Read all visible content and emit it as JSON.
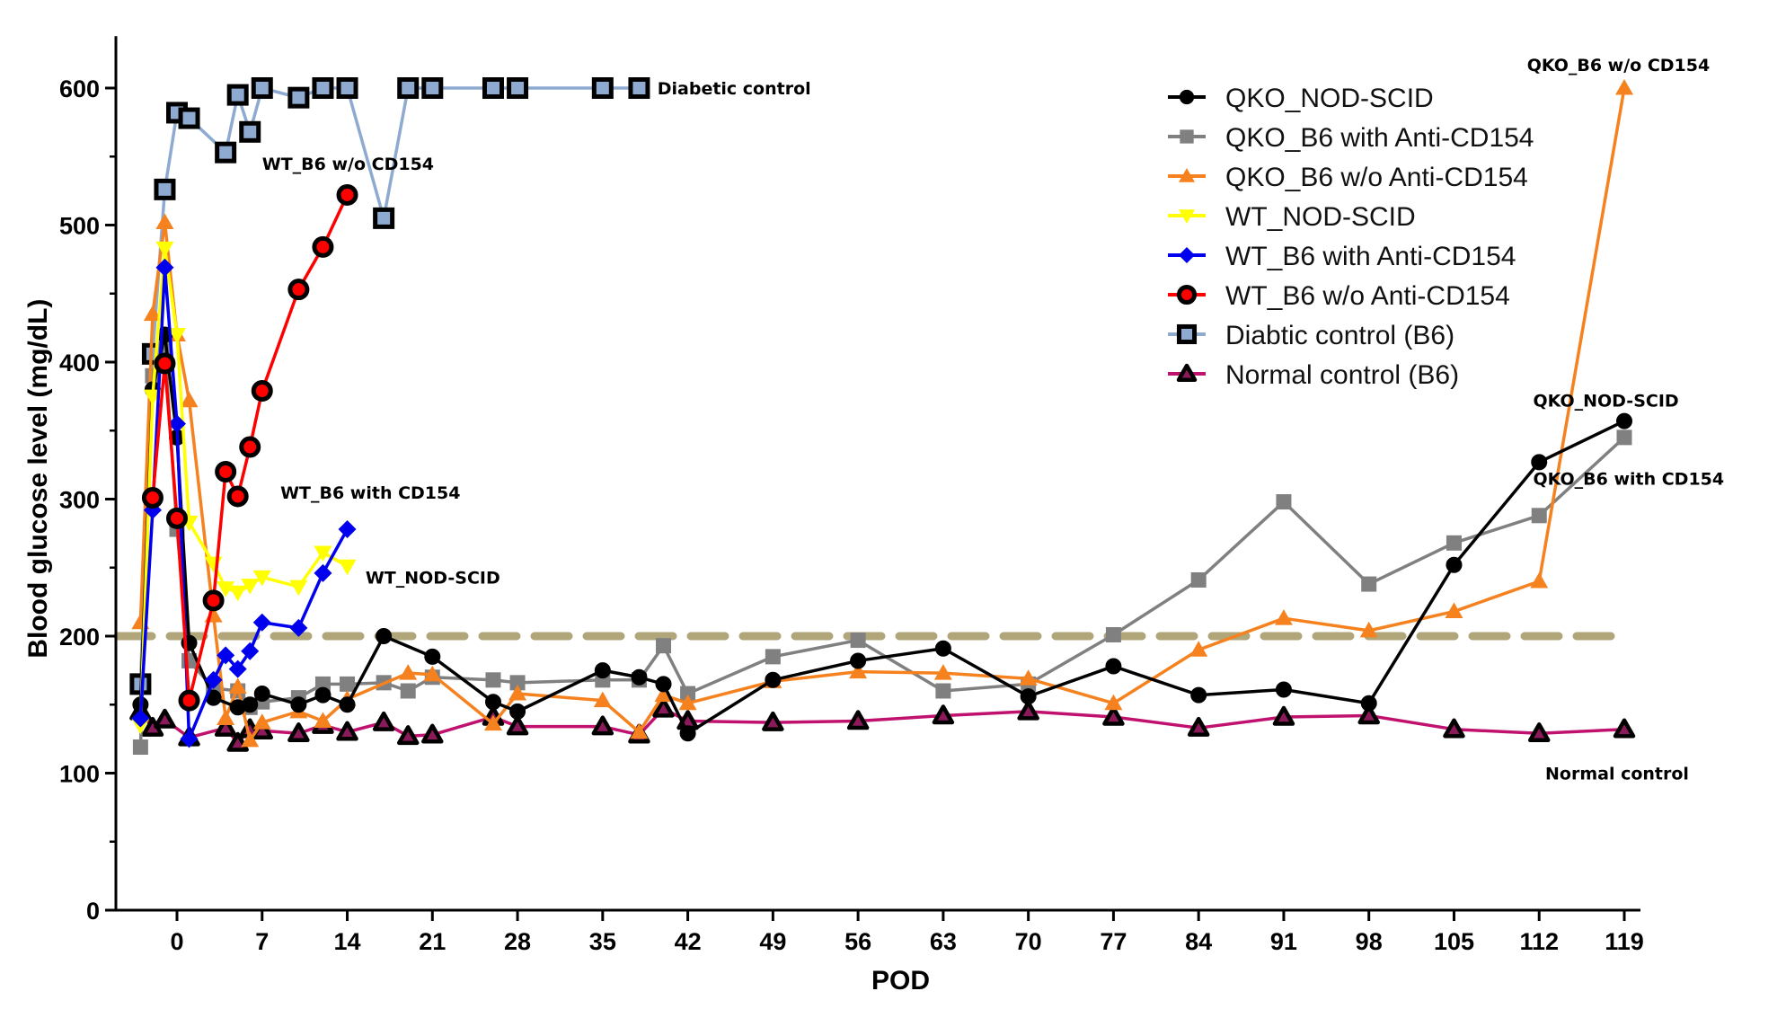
{
  "chart_data": {
    "type": "line",
    "title": "",
    "xlabel": "POD",
    "ylabel": "Blood glucose level (mg/dL)",
    "xlim": [
      -4.5,
      120
    ],
    "ylim": [
      0,
      630
    ],
    "x_ticks": [
      0,
      7,
      14,
      21,
      28,
      35,
      42,
      49,
      56,
      63,
      70,
      77,
      84,
      91,
      98,
      105,
      112,
      119
    ],
    "y_ticks": [
      0,
      100,
      200,
      300,
      400,
      500,
      600
    ],
    "y_minor_step": 50,
    "grid": false,
    "threshold": {
      "y": 200,
      "style": "dashed",
      "color": "#b0a67a"
    },
    "legend_position": "top-right",
    "series": [
      {
        "name": "QKO_NOD-SCID",
        "color": "#000000",
        "marker": "circle",
        "marker_fill": "#000000",
        "marker_stroke": "#000000",
        "points": [
          [
            -3,
            150
          ],
          [
            -2,
            380
          ],
          [
            -1,
            420
          ],
          [
            0,
            345
          ],
          [
            1,
            195
          ],
          [
            3,
            155
          ],
          [
            5,
            148
          ],
          [
            6,
            150
          ],
          [
            7,
            158
          ],
          [
            10,
            150
          ],
          [
            12,
            157
          ],
          [
            14,
            150
          ],
          [
            17,
            200
          ],
          [
            21,
            185
          ],
          [
            26,
            152
          ],
          [
            28,
            145
          ],
          [
            35,
            175
          ],
          [
            38,
            170
          ],
          [
            40,
            165
          ],
          [
            42,
            129
          ],
          [
            49,
            168
          ],
          [
            56,
            182
          ],
          [
            63,
            191
          ],
          [
            70,
            156
          ],
          [
            77,
            178
          ],
          [
            84,
            157
          ],
          [
            91,
            161
          ],
          [
            98,
            151
          ],
          [
            105,
            252
          ],
          [
            112,
            327
          ],
          [
            119,
            357
          ]
        ]
      },
      {
        "name": "QKO_B6 with Anti-CD154",
        "color": "#808080",
        "marker": "square",
        "marker_fill": "#808080",
        "marker_stroke": "#808080",
        "points": [
          [
            -3,
            119
          ],
          [
            -2,
            390
          ],
          [
            -1,
            410
          ],
          [
            0,
            278
          ],
          [
            1,
            182
          ],
          [
            3,
            162
          ],
          [
            5,
            160
          ],
          [
            6,
            148
          ],
          [
            7,
            152
          ],
          [
            10,
            155
          ],
          [
            12,
            165
          ],
          [
            14,
            165
          ],
          [
            17,
            166
          ],
          [
            19,
            160
          ],
          [
            21,
            170
          ],
          [
            26,
            168
          ],
          [
            28,
            166
          ],
          [
            35,
            168
          ],
          [
            38,
            168
          ],
          [
            40,
            193
          ],
          [
            42,
            158
          ],
          [
            49,
            185
          ],
          [
            56,
            197
          ],
          [
            63,
            160
          ],
          [
            70,
            165
          ],
          [
            77,
            201
          ],
          [
            84,
            241
          ],
          [
            91,
            298
          ],
          [
            98,
            238
          ],
          [
            105,
            268
          ],
          [
            112,
            288
          ],
          [
            119,
            345
          ]
        ]
      },
      {
        "name": "QKO_B6 w/o Anti-CD154",
        "color": "#f5821f",
        "marker": "triangle-up",
        "marker_fill": "#f5821f",
        "marker_stroke": "#f5821f",
        "points": [
          [
            -3,
            210
          ],
          [
            -2,
            435
          ],
          [
            -1,
            502
          ],
          [
            0,
            420
          ],
          [
            1,
            372
          ],
          [
            3,
            215
          ],
          [
            4,
            140
          ],
          [
            5,
            163
          ],
          [
            6,
            124
          ],
          [
            7,
            137
          ],
          [
            10,
            145
          ],
          [
            12,
            138
          ],
          [
            14,
            154
          ],
          [
            19,
            173
          ],
          [
            21,
            172
          ],
          [
            26,
            136
          ],
          [
            28,
            158
          ],
          [
            35,
            153
          ],
          [
            38,
            130
          ],
          [
            40,
            157
          ],
          [
            42,
            151
          ],
          [
            49,
            167
          ],
          [
            56,
            174
          ],
          [
            63,
            173
          ],
          [
            70,
            169
          ],
          [
            77,
            151
          ],
          [
            84,
            190
          ],
          [
            91,
            213
          ],
          [
            98,
            204
          ],
          [
            105,
            218
          ],
          [
            112,
            240
          ],
          [
            119,
            600
          ]
        ]
      },
      {
        "name": "WT_NOD-SCID",
        "color": "#ffff00",
        "marker": "triangle-down",
        "marker_fill": "#ffff00",
        "marker_stroke": "#e8e800",
        "points": [
          [
            -3,
            135
          ],
          [
            -2,
            375
          ],
          [
            -1,
            483
          ],
          [
            0,
            420
          ],
          [
            1,
            283
          ],
          [
            3,
            253
          ],
          [
            4,
            235
          ],
          [
            5,
            232
          ],
          [
            6,
            237
          ],
          [
            7,
            243
          ],
          [
            10,
            236
          ],
          [
            12,
            261
          ],
          [
            14,
            251
          ]
        ]
      },
      {
        "name": "WT_B6 with Anti-CD154",
        "color": "#0000ee",
        "marker": "diamond",
        "marker_fill": "#0000ee",
        "marker_stroke": "#0000ee",
        "points": [
          [
            -3,
            140
          ],
          [
            -2,
            292
          ],
          [
            -1,
            469
          ],
          [
            0,
            355
          ],
          [
            1,
            125
          ],
          [
            3,
            168
          ],
          [
            4,
            186
          ],
          [
            5,
            176
          ],
          [
            6,
            189
          ],
          [
            7,
            210
          ],
          [
            10,
            206
          ],
          [
            12,
            246
          ],
          [
            14,
            278
          ]
        ]
      },
      {
        "name": "WT_B6 w/o Anti-CD154",
        "color": "#ff0000",
        "marker": "circle-outlined",
        "marker_fill": "#ff0000",
        "marker_stroke": "#000000",
        "points": [
          [
            -2,
            301
          ],
          [
            -1,
            399
          ],
          [
            0,
            286
          ],
          [
            1,
            153
          ],
          [
            3,
            226
          ],
          [
            4,
            320
          ],
          [
            5,
            302
          ],
          [
            6,
            338
          ],
          [
            7,
            379
          ],
          [
            10,
            453
          ],
          [
            12,
            484
          ],
          [
            14,
            522
          ]
        ]
      },
      {
        "name": "Diabtic control (B6)",
        "color": "#8eaad0",
        "marker": "square-outlined",
        "marker_fill": "#8eaad0",
        "marker_stroke": "#000000",
        "points": [
          [
            -3,
            165
          ],
          [
            -2,
            406
          ],
          [
            -1,
            526
          ],
          [
            0,
            582
          ],
          [
            1,
            578
          ],
          [
            4,
            553
          ],
          [
            5,
            595
          ],
          [
            6,
            568
          ],
          [
            7,
            600
          ],
          [
            10,
            593
          ],
          [
            12,
            600
          ],
          [
            14,
            600
          ],
          [
            17,
            505
          ],
          [
            19,
            600
          ],
          [
            21,
            600
          ],
          [
            26,
            600
          ],
          [
            28,
            600
          ],
          [
            35,
            600
          ],
          [
            38,
            600
          ]
        ]
      },
      {
        "name": "Normal control (B6)",
        "color": "#c0116f",
        "marker": "triangle-outlined",
        "marker_fill": "#8b1a5a",
        "marker_stroke": "#000000",
        "points": [
          [
            -3,
            145
          ],
          [
            -2,
            133
          ],
          [
            -1,
            139
          ],
          [
            1,
            126
          ],
          [
            4,
            133
          ],
          [
            5,
            122
          ],
          [
            6,
            132
          ],
          [
            7,
            131
          ],
          [
            10,
            129
          ],
          [
            12,
            135
          ],
          [
            14,
            130
          ],
          [
            17,
            137
          ],
          [
            19,
            127
          ],
          [
            21,
            128
          ],
          [
            26,
            141
          ],
          [
            28,
            134
          ],
          [
            35,
            134
          ],
          [
            38,
            128
          ],
          [
            40,
            147
          ],
          [
            42,
            138
          ],
          [
            49,
            137
          ],
          [
            56,
            138
          ],
          [
            63,
            142
          ],
          [
            70,
            145
          ],
          [
            77,
            141
          ],
          [
            84,
            133
          ],
          [
            91,
            141
          ],
          [
            98,
            142
          ],
          [
            105,
            132
          ],
          [
            112,
            129
          ],
          [
            119,
            132
          ]
        ]
      }
    ],
    "annotations": [
      {
        "text": "Diabetic control",
        "x": 39.5,
        "y": 600
      },
      {
        "text": "WT_B6 w/o CD154",
        "x": 7,
        "y": 545
      },
      {
        "text": "WT_B6 with CD154",
        "x": 8.5,
        "y": 305
      },
      {
        "text": "WT_NOD-SCID",
        "x": 15.5,
        "y": 243
      },
      {
        "text": "QKO_B6 w/o CD154",
        "x": 111,
        "y": 617
      },
      {
        "text": "QKO_NOD-SCID",
        "x": 111.5,
        "y": 372
      },
      {
        "text": "QKO_B6 with CD154",
        "x": 111.5,
        "y": 315
      },
      {
        "text": "Normal control",
        "x": 112.5,
        "y": 100
      }
    ]
  }
}
